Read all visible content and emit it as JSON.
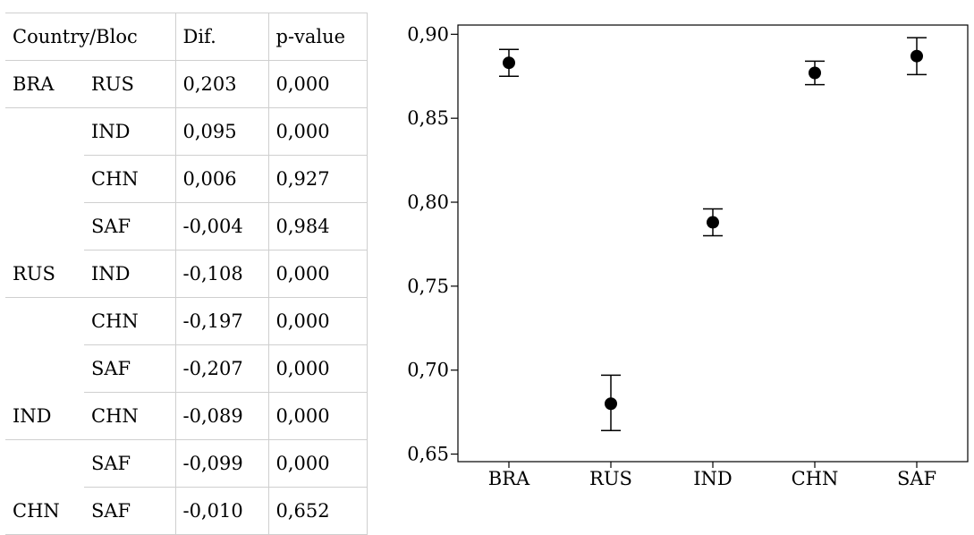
{
  "table": {
    "headers": [
      "Country/Bloc",
      "Dif.",
      "p-value"
    ],
    "rows": [
      {
        "group": "BRA",
        "pair": "RUS",
        "dif": "0,203",
        "p": "0,000"
      },
      {
        "group": "",
        "pair": "IND",
        "dif": "0,095",
        "p": "0,000"
      },
      {
        "group": "",
        "pair": "CHN",
        "dif": "0,006",
        "p": "0,927"
      },
      {
        "group": "",
        "pair": "SAF",
        "dif": "-0,004",
        "p": "0,984"
      },
      {
        "group": "RUS",
        "pair": "IND",
        "dif": "-0,108",
        "p": "0,000"
      },
      {
        "group": "",
        "pair": "CHN",
        "dif": "-0,197",
        "p": "0,000"
      },
      {
        "group": "",
        "pair": "SAF",
        "dif": "-0,207",
        "p": "0,000"
      },
      {
        "group": "IND",
        "pair": "CHN",
        "dif": "-0,089",
        "p": "0,000"
      },
      {
        "group": "",
        "pair": "SAF",
        "dif": "-0,099",
        "p": "0,000"
      },
      {
        "group": "CHN",
        "pair": "SAF",
        "dif": "-0,010",
        "p": "0,652"
      }
    ]
  },
  "chart_data": {
    "type": "scatter",
    "title": "",
    "xlabel": "",
    "ylabel": "",
    "categories": [
      "BRA",
      "RUS",
      "IND",
      "CHN",
      "SAF"
    ],
    "series": [
      {
        "values": [
          0.883,
          0.68,
          0.788,
          0.877,
          0.887
        ],
        "err_low": [
          0.875,
          0.664,
          0.78,
          0.87,
          0.876
        ],
        "err_high": [
          0.891,
          0.697,
          0.796,
          0.884,
          0.898
        ]
      }
    ],
    "yticks": [
      0.65,
      0.7,
      0.75,
      0.8,
      0.85,
      0.9
    ],
    "ytick_labels": [
      "0,65",
      "0,70",
      "0,75",
      "0,80",
      "0,85",
      "0,90"
    ],
    "ylim": [
      0.6455,
      0.9055
    ],
    "grid": false,
    "legend": "none",
    "marker_color": "#000000"
  }
}
